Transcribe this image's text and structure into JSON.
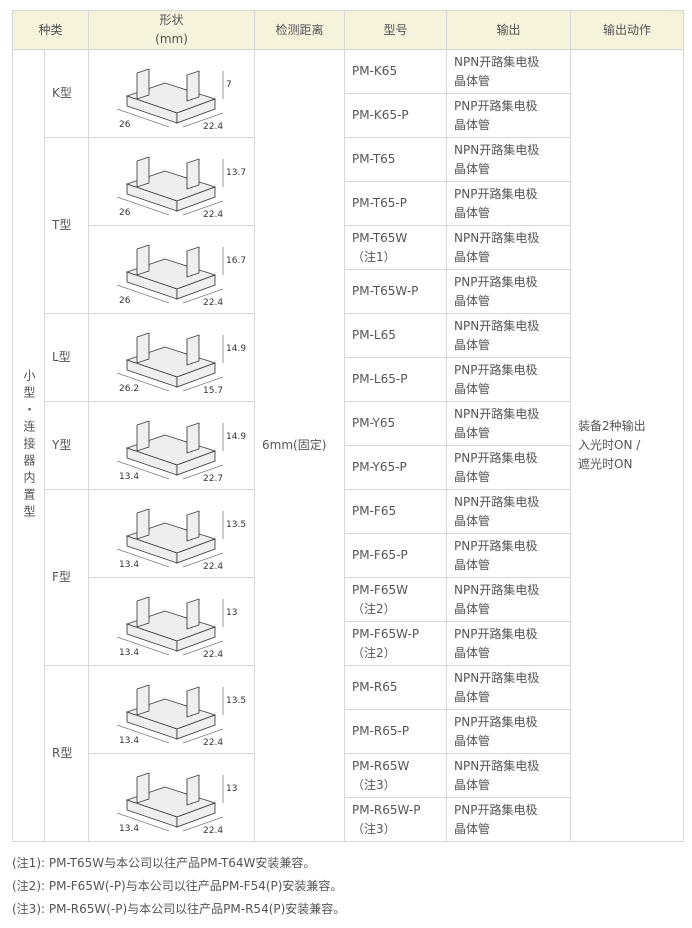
{
  "header": {
    "kind": "种类",
    "shape": [
      "形状",
      "(mm)"
    ],
    "distance": "检测距离",
    "model": "型号",
    "output": "输出",
    "action": "输出动作"
  },
  "group": "小型・连接器内置型",
  "distance": "6mm(固定)",
  "action": [
    "装备2种输出",
    "入光时ON /",
    "遮光时ON"
  ],
  "subtypes": [
    {
      "label": "K型",
      "shapes": [
        {
          "dims": [
            "26",
            "22.4",
            "7"
          ]
        }
      ],
      "models": [
        {
          "name": "PM-K65",
          "output": [
            "NPN开路集电极",
            "晶体管"
          ]
        },
        {
          "name": "PM-K65-P",
          "output": [
            "PNP开路集电极",
            "晶体管"
          ]
        }
      ]
    },
    {
      "label": "T型",
      "shapes": [
        {
          "dims": [
            "26",
            "22.4",
            "13.7"
          ]
        },
        {
          "dims": [
            "26",
            "22.4",
            "16.7"
          ]
        }
      ],
      "models": [
        {
          "name": "PM-T65",
          "output": [
            "NPN开路集电极",
            "晶体管"
          ]
        },
        {
          "name": "PM-T65-P",
          "output": [
            "PNP开路集电极",
            "晶体管"
          ]
        },
        {
          "name": "PM-T65W",
          "note": "（注1）",
          "output": [
            "NPN开路集电极",
            "晶体管"
          ]
        },
        {
          "name": "PM-T65W-P",
          "output": [
            "PNP开路集电极",
            "晶体管"
          ]
        }
      ]
    },
    {
      "label": "L型",
      "shapes": [
        {
          "dims": [
            "26.2",
            "15.7",
            "14.9"
          ]
        }
      ],
      "models": [
        {
          "name": "PM-L65",
          "output": [
            "NPN开路集电极",
            "晶体管"
          ]
        },
        {
          "name": "PM-L65-P",
          "output": [
            "PNP开路集电极",
            "晶体管"
          ]
        }
      ]
    },
    {
      "label": "Y型",
      "shapes": [
        {
          "dims": [
            "13.4",
            "22.7",
            "14.9"
          ]
        }
      ],
      "models": [
        {
          "name": "PM-Y65",
          "output": [
            "NPN开路集电极",
            "晶体管"
          ]
        },
        {
          "name": "PM-Y65-P",
          "output": [
            "PNP开路集电极",
            "晶体管"
          ]
        }
      ]
    },
    {
      "label": "F型",
      "shapes": [
        {
          "dims": [
            "13.4",
            "22.4",
            "13.5"
          ]
        },
        {
          "dims": [
            "13.4",
            "22.4",
            "13"
          ]
        }
      ],
      "models": [
        {
          "name": "PM-F65",
          "output": [
            "NPN开路集电极",
            "晶体管"
          ]
        },
        {
          "name": "PM-F65-P",
          "output": [
            "PNP开路集电极",
            "晶体管"
          ]
        },
        {
          "name": "PM-F65W",
          "note": "（注2）",
          "output": [
            "NPN开路集电极",
            "晶体管"
          ]
        },
        {
          "name": "PM-F65W-P",
          "note": "（注2）",
          "output": [
            "PNP开路集电极",
            "晶体管"
          ]
        }
      ]
    },
    {
      "label": "R型",
      "shapes": [
        {
          "dims": [
            "13.4",
            "22.4",
            "13.5"
          ]
        },
        {
          "dims": [
            "13.4",
            "22.4",
            "13"
          ]
        }
      ],
      "models": [
        {
          "name": "PM-R65",
          "output": [
            "NPN开路集电极",
            "晶体管"
          ]
        },
        {
          "name": "PM-R65-P",
          "output": [
            "PNP开路集电极",
            "晶体管"
          ]
        },
        {
          "name": "PM-R65W",
          "note": "（注3）",
          "output": [
            "NPN开路集电极",
            "晶体管"
          ]
        },
        {
          "name": "PM-R65W-P",
          "note": "（注3）",
          "output": [
            "PNP开路集电极",
            "晶体管"
          ]
        }
      ]
    }
  ],
  "notes": [
    "(注1): PM-T65W与本公司以往产品PM-T64W安装兼容。",
    "(注2): PM-F65W(-P)与本公司以往产品PM-F54(P)安装兼容。",
    "(注3): PM-R65W(-P)与本公司以往产品PM-R54(P)安装兼容。"
  ]
}
